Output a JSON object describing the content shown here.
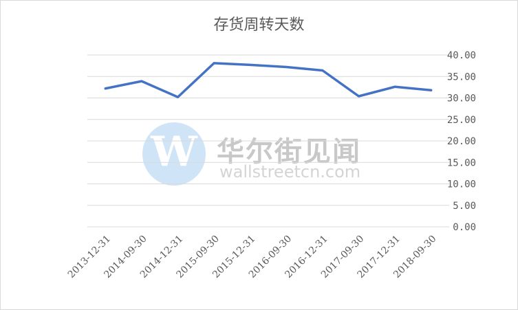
{
  "chart_data": {
    "type": "line",
    "title": "存货周转天数",
    "xlabel": "",
    "ylabel": "",
    "categories": [
      "2013-12-31",
      "2014-09-30",
      "2014-12-31",
      "2015-09-30",
      "2015-12-31",
      "2016-09-30",
      "2016-12-31",
      "2017-09-30",
      "2017-12-31",
      "2018-09-30"
    ],
    "series": [
      {
        "values": [
          32.2,
          33.9,
          30.2,
          38.1,
          37.7,
          37.2,
          36.4,
          30.4,
          32.6,
          31.8
        ]
      }
    ],
    "ylim": [
      0,
      40
    ],
    "y_ticks": [
      "0.00",
      "5.00",
      "10.00",
      "15.00",
      "20.00",
      "25.00",
      "30.00",
      "35.00",
      "40.00"
    ],
    "y_axis_side": "right",
    "grid": true,
    "legend": "none",
    "line_color": "#4472c4",
    "grid_color": "#d9d9d9"
  },
  "watermark": {
    "logo_letter": "W",
    "name_cn": "华尔街见闻",
    "name_en": "wallstreetcn.com"
  }
}
